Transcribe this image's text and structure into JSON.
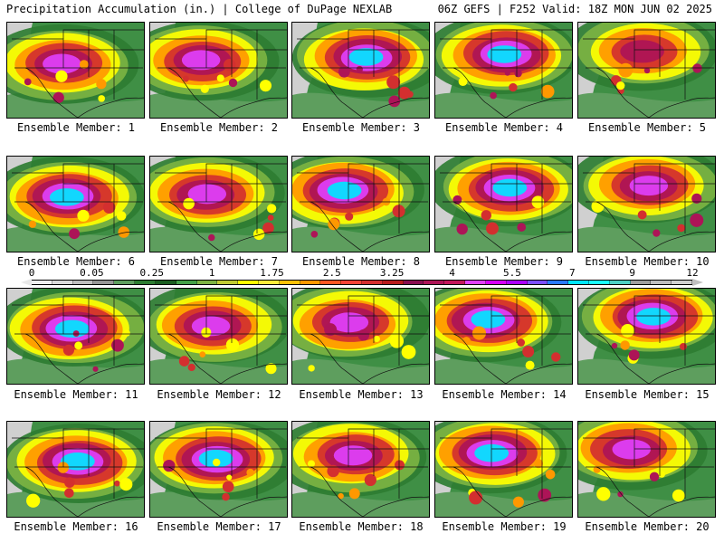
{
  "header": {
    "left_title": "Precipitation Accumulation (in.) | College of DuPage NEXLAB",
    "right_title": "06Z GEFS | F252 Valid: 18Z MON JUN 02 2025"
  },
  "members": [
    {
      "label": "Ensemble Member: 1",
      "intensity": 0.72
    },
    {
      "label": "Ensemble Member: 2",
      "intensity": 0.7
    },
    {
      "label": "Ensemble Member: 3",
      "intensity": 0.85
    },
    {
      "label": "Ensemble Member: 4",
      "intensity": 0.78
    },
    {
      "label": "Ensemble Member: 5",
      "intensity": 0.55
    },
    {
      "label": "Ensemble Member: 6",
      "intensity": 0.8
    },
    {
      "label": "Ensemble Member: 7",
      "intensity": 0.62
    },
    {
      "label": "Ensemble Member: 8",
      "intensity": 0.76
    },
    {
      "label": "Ensemble Member: 9",
      "intensity": 0.8
    },
    {
      "label": "Ensemble Member: 10",
      "intensity": 0.66
    },
    {
      "label": "Ensemble Member: 11",
      "intensity": 0.82
    },
    {
      "label": "Ensemble Member: 12",
      "intensity": 0.68
    },
    {
      "label": "Ensemble Member: 13",
      "intensity": 0.72
    },
    {
      "label": "Ensemble Member: 14",
      "intensity": 0.82
    },
    {
      "label": "Ensemble Member: 15",
      "intensity": 0.76
    },
    {
      "label": "Ensemble Member: 16",
      "intensity": 0.78
    },
    {
      "label": "Ensemble Member: 17",
      "intensity": 0.86
    },
    {
      "label": "Ensemble Member: 18",
      "intensity": 0.74
    },
    {
      "label": "Ensemble Member: 19",
      "intensity": 0.8
    },
    {
      "label": "Ensemble Member: 20",
      "intensity": 0.72
    }
  ],
  "colorbar": {
    "labels": [
      "0",
      "0.05",
      "0.25",
      "1",
      "1.75",
      "2.5",
      "3.25",
      "4",
      "5.5",
      "7",
      "9",
      "12"
    ],
    "colors": [
      "#f0f0f0",
      "#d9d9d9",
      "#bdbdbd",
      "#969696",
      "#5e9e5e",
      "#2e7d32",
      "#1b5e20",
      "#43a047",
      "#7cb342",
      "#c0ca33",
      "#ffff00",
      "#ffeb3b",
      "#ffc107",
      "#ff9800",
      "#ff5722",
      "#f44336",
      "#d32f2f",
      "#b71c1c",
      "#880e4f",
      "#ad1457",
      "#c2185b",
      "#e040fb",
      "#d500f9",
      "#aa00ff",
      "#7c4dff",
      "#2979ff",
      "#00e5ff",
      "#18ffff",
      "#4dd0c4",
      "#9e9e9e",
      "#bdbdbd",
      "#cfcfcf"
    ],
    "left_end_color": "#e8e8e8",
    "right_end_color": "#c0c0c0"
  }
}
